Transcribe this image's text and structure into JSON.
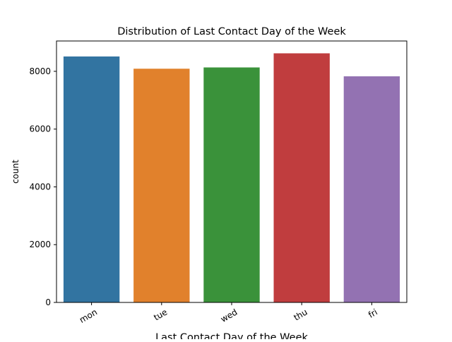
{
  "chart_data": {
    "type": "bar",
    "title": "Distribution of Last Contact Day of the Week",
    "xlabel": "Last Contact Day of the Week",
    "ylabel": "count",
    "categories": [
      "mon",
      "tue",
      "wed",
      "thu",
      "fri"
    ],
    "values": [
      8514,
      8090,
      8134,
      8623,
      7827
    ],
    "colors": [
      "#3274a1",
      "#e1812c",
      "#3a923a",
      "#c03d3e",
      "#9372b2"
    ],
    "ylim": [
      0,
      9050
    ],
    "yticks": [
      0,
      2000,
      4000,
      6000,
      8000
    ],
    "grid": false,
    "legend": "none"
  }
}
